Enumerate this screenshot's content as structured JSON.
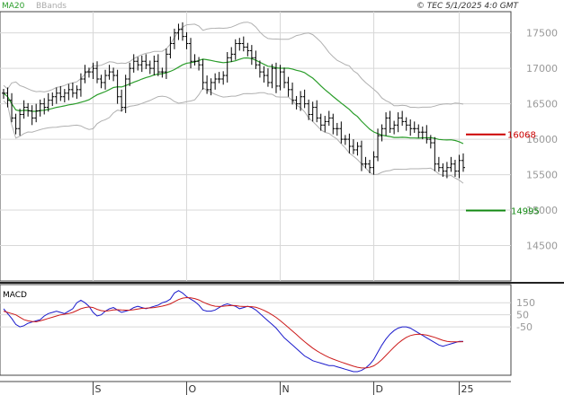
{
  "header": {
    "ma_label": "MA20",
    "bb_label": "BBands",
    "copyright": "© TEC 5/1/2025 4:0 GMT"
  },
  "colors": {
    "ma": "#2a9d2a",
    "bands": "#b0b0b0",
    "candles": "#000000",
    "macd": "#1a1acc",
    "signal": "#cc1a1a",
    "resistance": "#cc0000",
    "support": "#118811",
    "grid": "#d8d8d8"
  },
  "chart_data": [
    {
      "type": "ohlc",
      "title": "",
      "ylim": [
        14000,
        17800
      ],
      "y_ticks": [
        "17500",
        "17000",
        "16500",
        "16000",
        "15500",
        "15000",
        "14500"
      ],
      "x_ticks": [
        "S",
        "O",
        "N",
        "D",
        "25"
      ],
      "levels": [
        {
          "value": 16068,
          "label": "16068",
          "kind": "resistance"
        },
        {
          "value": 14995,
          "label": "14995",
          "kind": "support"
        }
      ],
      "close": [
        16650,
        16550,
        16300,
        16150,
        16350,
        16450,
        16400,
        16300,
        16400,
        16500,
        16450,
        16550,
        16600,
        16650,
        16600,
        16650,
        16700,
        16650,
        16700,
        16850,
        16950,
        16950,
        17000,
        16850,
        16800,
        16900,
        16950,
        16900,
        16600,
        16450,
        16850,
        17000,
        17100,
        17050,
        17100,
        17050,
        17000,
        17100,
        16950,
        16950,
        17200,
        17350,
        17500,
        17550,
        17450,
        17350,
        17100,
        17100,
        17050,
        16800,
        16700,
        16800,
        16850,
        16850,
        16900,
        17150,
        17200,
        17350,
        17350,
        17300,
        17250,
        17150,
        17050,
        16950,
        16900,
        16800,
        17000,
        16750,
        16950,
        16800,
        16700,
        16550,
        16500,
        16600,
        16500,
        16350,
        16450,
        16300,
        16200,
        16250,
        16300,
        16150,
        16150,
        16000,
        16000,
        15900,
        15850,
        15900,
        15650,
        15650,
        15600,
        15750,
        16050,
        16150,
        16300,
        16150,
        16200,
        16300,
        16250,
        16200,
        16150,
        16150,
        16100,
        16100,
        16000,
        15950,
        15650,
        15600,
        15550,
        15600,
        15650,
        15550,
        15700,
        15600
      ]
    },
    {
      "type": "line",
      "title": "MACD",
      "y_ticks": [
        "150",
        "50",
        "-50"
      ],
      "series": [
        {
          "name": "MACD",
          "values": [
            100,
            60,
            20,
            -30,
            -50,
            -40,
            -20,
            -10,
            0,
            10,
            40,
            60,
            70,
            80,
            70,
            60,
            80,
            100,
            150,
            170,
            150,
            120,
            70,
            40,
            50,
            80,
            100,
            110,
            90,
            70,
            80,
            90,
            110,
            120,
            110,
            100,
            110,
            120,
            130,
            150,
            160,
            180,
            230,
            250,
            230,
            200,
            180,
            160,
            130,
            90,
            80,
            80,
            90,
            110,
            130,
            140,
            130,
            120,
            100,
            110,
            120,
            110,
            90,
            60,
            30,
            0,
            -30,
            -60,
            -100,
            -140,
            -170,
            -200,
            -230,
            -260,
            -290,
            -310,
            -330,
            -340,
            -350,
            -360,
            -370,
            -370,
            -380,
            -390,
            -400,
            -410,
            -420,
            -420,
            -410,
            -390,
            -360,
            -320,
            -260,
            -200,
            -150,
            -110,
            -80,
            -60,
            -50,
            -50,
            -60,
            -80,
            -100,
            -120,
            -140,
            -160,
            -180,
            -200,
            -210,
            -200,
            -190,
            -180,
            -170,
            -170
          ]
        },
        {
          "name": "Signal",
          "values": [
            80,
            70,
            60,
            50,
            30,
            10,
            0,
            -5,
            -8,
            0,
            10,
            20,
            30,
            40,
            50,
            55,
            60,
            70,
            85,
            100,
            110,
            115,
            110,
            95,
            85,
            80,
            85,
            90,
            92,
            90,
            88,
            88,
            92,
            98,
            103,
            105,
            107,
            110,
            115,
            122,
            130,
            140,
            158,
            176,
            188,
            192,
            190,
            184,
            173,
            156,
            141,
            129,
            121,
            119,
            121,
            125,
            127,
            126,
            121,
            119,
            119,
            117,
            112,
            101,
            87,
            70,
            50,
            28,
            2,
            -26,
            -55,
            -84,
            -113,
            -143,
            -172,
            -200,
            -226,
            -248,
            -268,
            -286,
            -303,
            -316,
            -329,
            -341,
            -353,
            -364,
            -375,
            -384,
            -390,
            -390,
            -384,
            -372,
            -350,
            -320,
            -286,
            -251,
            -217,
            -186,
            -159,
            -137,
            -122,
            -114,
            -111,
            -113,
            -118,
            -127,
            -137,
            -149,
            -161,
            -169,
            -173,
            -174,
            -173,
            -172
          ]
        }
      ]
    }
  ],
  "macd_label": "MACD"
}
